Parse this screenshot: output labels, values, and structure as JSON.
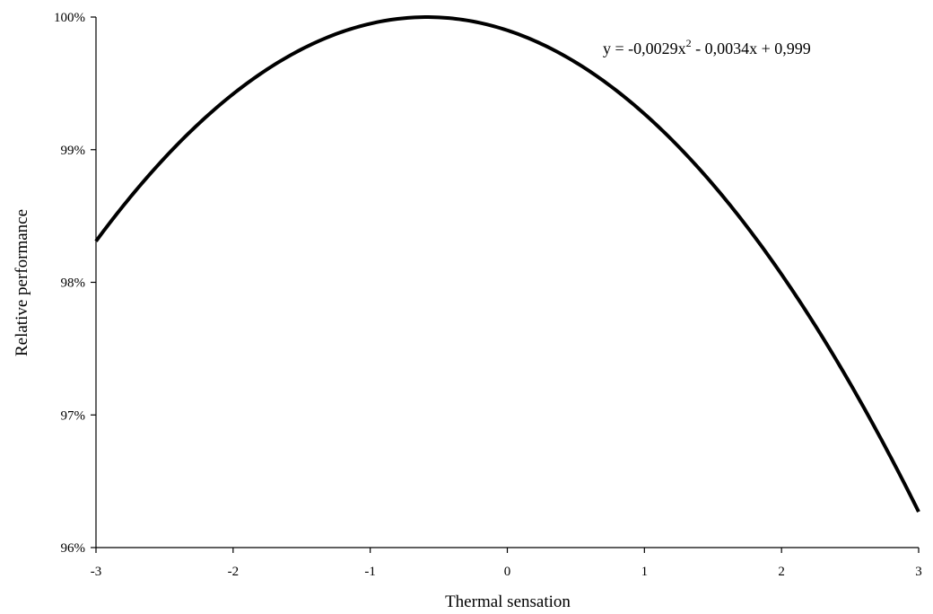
{
  "chart_data": {
    "type": "line",
    "xlabel": "Thermal sensation",
    "ylabel": "Relative performance",
    "xlim": [
      -3,
      3
    ],
    "ylim": [
      0.96,
      1.0
    ],
    "x_ticks": [
      -3,
      -2,
      -1,
      0,
      1,
      2,
      3
    ],
    "x_tick_labels": [
      "-3",
      "-2",
      "-1",
      "0",
      "1",
      "2",
      "3"
    ],
    "y_ticks": [
      0.96,
      0.97,
      0.98,
      0.99,
      1.0
    ],
    "y_tick_labels": [
      "96%",
      "97%",
      "98%",
      "99%",
      "100%"
    ],
    "grid": false,
    "legend": "none",
    "equation": {
      "lhs": "y = ",
      "term1": "-0,0029x",
      "exp": "2",
      "rest": " - 0,0034x + 0,999"
    },
    "series": [
      {
        "color": "#000000",
        "coefficients": {
          "a": -0.0029,
          "b": -0.0034,
          "c": 0.999
        },
        "x": [
          -3,
          -2.5,
          -2,
          -1.5,
          -1,
          -0.5,
          0,
          0.5,
          1,
          1.5,
          2,
          2.5,
          3
        ],
        "y": [
          0.9832,
          0.9893,
          0.9942,
          0.9976,
          0.9995,
          1.0,
          0.999,
          0.9966,
          0.9927,
          0.9874,
          0.9806,
          0.9724,
          0.9626
        ]
      }
    ]
  }
}
